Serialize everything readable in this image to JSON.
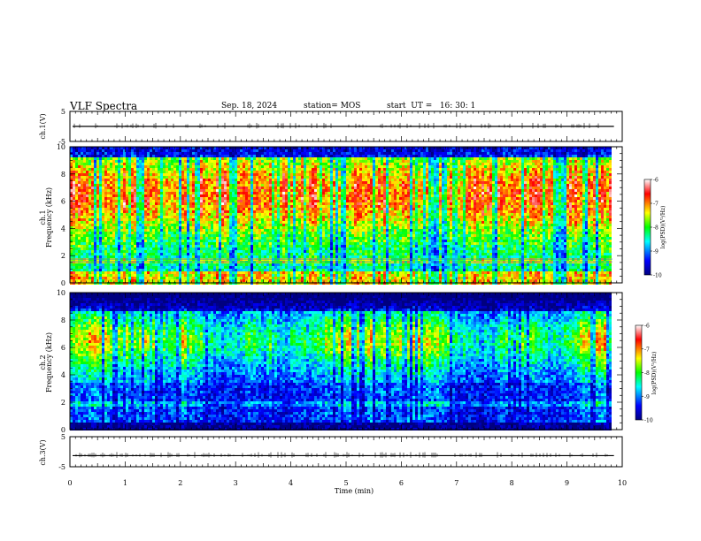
{
  "header": {
    "title": "VLF Spectra",
    "date": "Sep. 18, 2024",
    "station": "station= MOS",
    "start": "start  UT =   16: 30: 1"
  },
  "chart_data": [
    {
      "type": "line",
      "panel": "ch1-waveform",
      "ylabel": "ch.1(V)",
      "ylim": [
        -5,
        5
      ],
      "yticks": [
        "5",
        "-5"
      ],
      "xlim": [
        0,
        10
      ],
      "series": [
        {
          "approx_level": 0
        }
      ]
    },
    {
      "type": "heatmap",
      "panel": "ch1-spectrogram",
      "ylabel_lines": [
        "ch.1",
        "Frequency (kHz)"
      ],
      "ylim": [
        0,
        10
      ],
      "yticks": [
        "0",
        "2",
        "4",
        "6",
        "8",
        "10"
      ],
      "xlim": [
        0,
        10
      ],
      "data_extent_min": 9.82,
      "colorbar": {
        "label": "log(PSD)(V²/Hz)",
        "range": [
          -10,
          -6
        ],
        "ticks": [
          "-6",
          "-7",
          "-8",
          "-9",
          "-10"
        ]
      }
    },
    {
      "type": "heatmap",
      "panel": "ch2-spectrogram",
      "ylabel_lines": [
        "ch.2",
        "Frequency (kHz)"
      ],
      "ylim": [
        0,
        10
      ],
      "yticks": [
        "0",
        "2",
        "4",
        "6",
        "8",
        "10"
      ],
      "xlim": [
        0,
        10
      ],
      "data_extent_min": 9.82,
      "colorbar": {
        "label": "log(PSD)(V²/Hz)",
        "range": [
          -10,
          -6
        ],
        "ticks": [
          "-6",
          "-7",
          "-8",
          "-9",
          "-10"
        ]
      }
    },
    {
      "type": "line",
      "panel": "ch3-waveform",
      "ylabel": "ch.3(V)",
      "ylim": [
        -5,
        5
      ],
      "yticks": [
        "5",
        "-5"
      ],
      "xlim": [
        0,
        10
      ],
      "series": [
        {
          "approx_level": -1.3
        }
      ]
    }
  ],
  "xaxis": {
    "label": "Time (min)",
    "ticks": [
      "0",
      "1",
      "2",
      "3",
      "4",
      "5",
      "6",
      "7",
      "8",
      "9",
      "10"
    ]
  }
}
